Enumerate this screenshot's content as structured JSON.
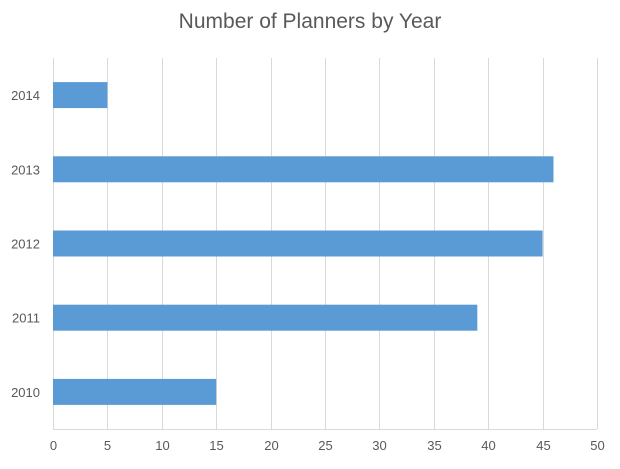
{
  "chart_data": {
    "type": "bar",
    "orientation": "horizontal",
    "title": "Number of Planners by Year",
    "categories": [
      "2010",
      "2011",
      "2012",
      "2013",
      "2014"
    ],
    "values": [
      15,
      39,
      45,
      46,
      5
    ],
    "xlabel": "",
    "ylabel": "",
    "xlim": [
      0,
      50
    ],
    "xticks": [
      0,
      5,
      10,
      15,
      20,
      25,
      30,
      35,
      40,
      45,
      50
    ],
    "grid": true,
    "bar_color": "#5B9BD5",
    "grid_color": "#D9D9D9",
    "text_color": "#595959"
  }
}
